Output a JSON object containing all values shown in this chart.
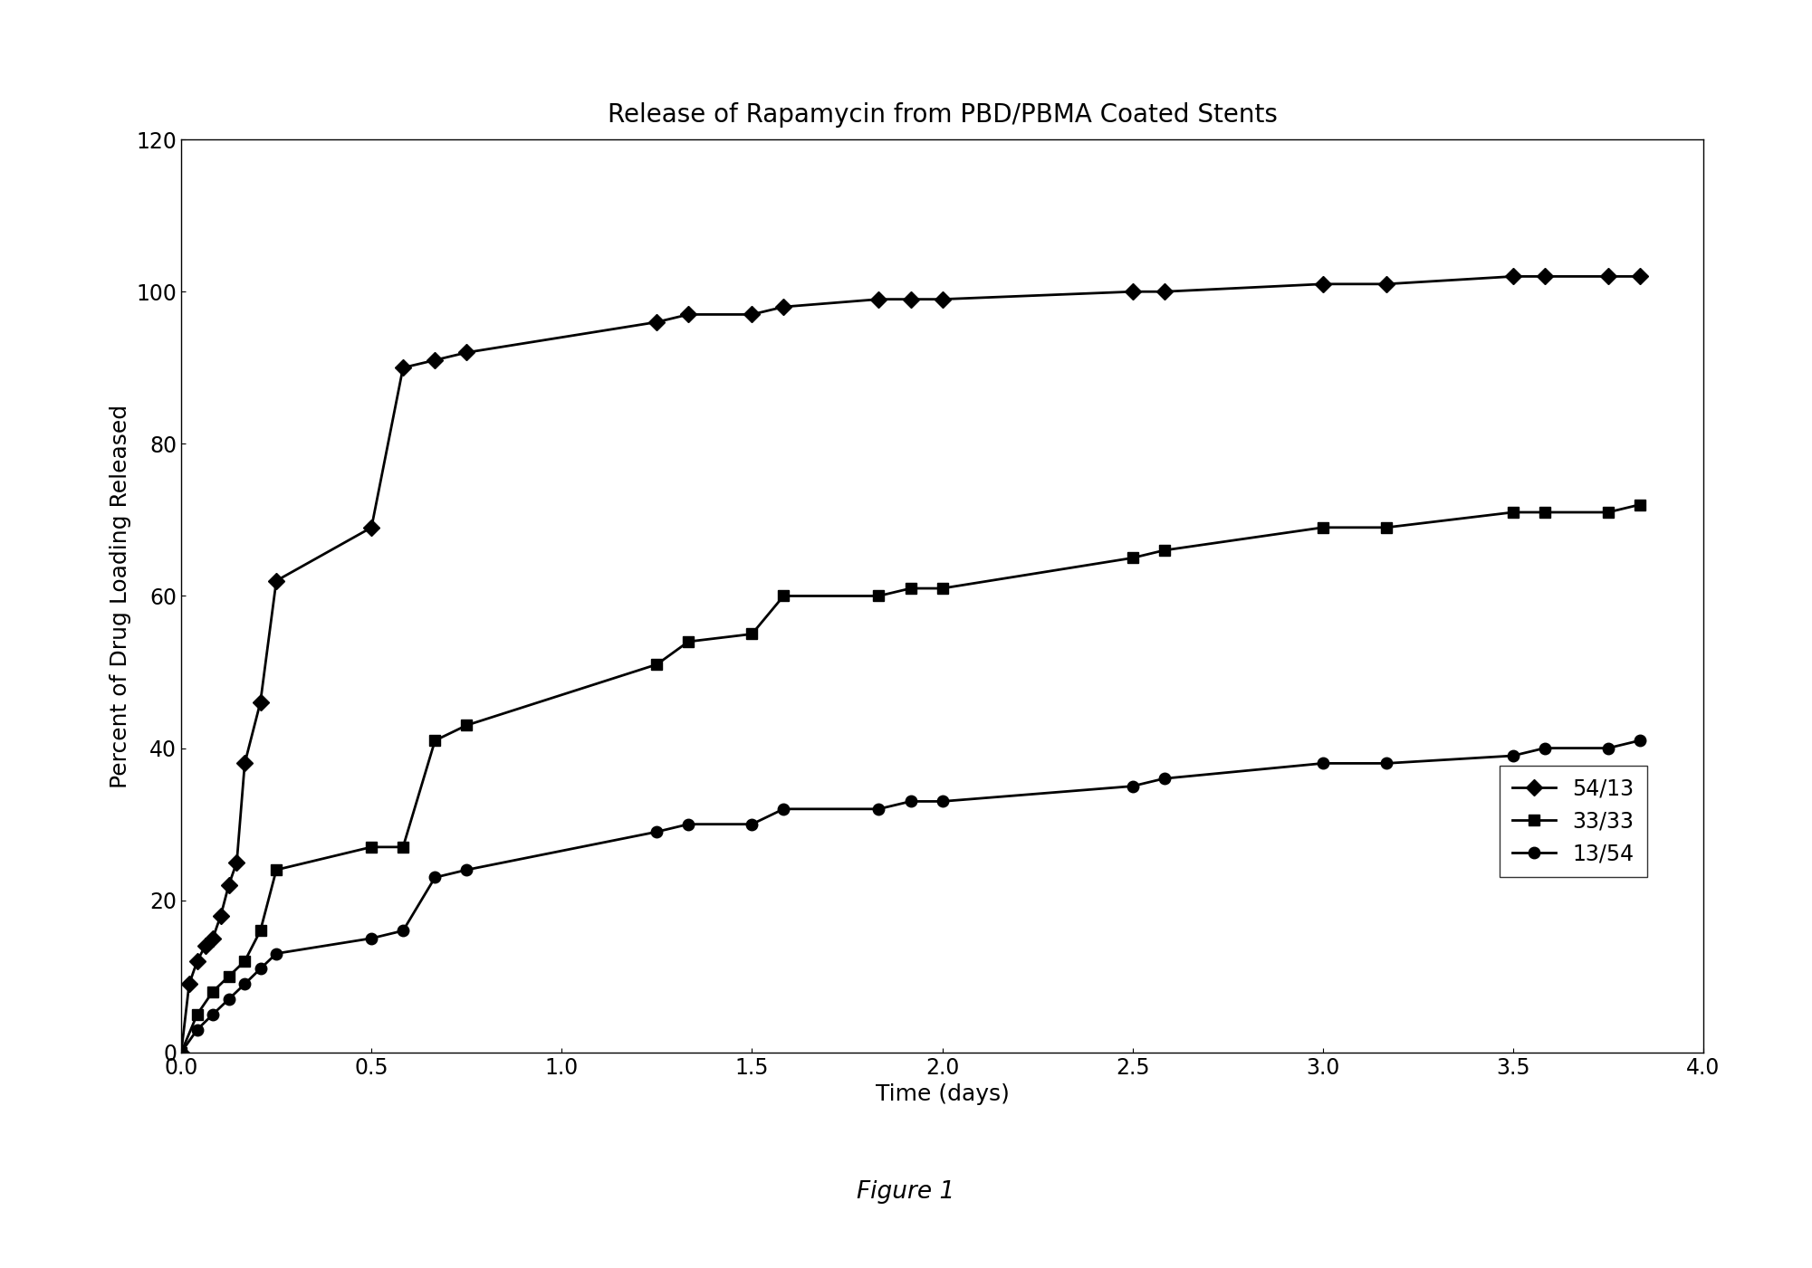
{
  "title": "Release of Rapamycin from PBD/PBMA Coated Stents",
  "xlabel": "Time (days)",
  "ylabel": "Percent of Drug Loading Released",
  "figure_caption": "Figure 1",
  "xlim": [
    0,
    4
  ],
  "ylim": [
    0,
    120
  ],
  "xticks": [
    0,
    0.5,
    1,
    1.5,
    2,
    2.5,
    3,
    3.5,
    4
  ],
  "yticks": [
    0,
    20,
    40,
    60,
    80,
    100,
    120
  ],
  "background_color": "#ffffff",
  "series": [
    {
      "label": "54/13",
      "marker": "D",
      "markersize": 9,
      "color": "#000000",
      "linewidth": 2.0,
      "x": [
        0,
        0.021,
        0.042,
        0.063,
        0.083,
        0.104,
        0.125,
        0.146,
        0.167,
        0.208,
        0.25,
        0.5,
        0.583,
        0.667,
        0.75,
        1.25,
        1.333,
        1.5,
        1.583,
        1.833,
        1.917,
        2.0,
        2.5,
        2.583,
        3.0,
        3.167,
        3.5,
        3.583,
        3.75,
        3.833
      ],
      "y": [
        0,
        9,
        12,
        14,
        15,
        18,
        22,
        25,
        38,
        46,
        62,
        69,
        90,
        91,
        92,
        96,
        97,
        97,
        98,
        99,
        99,
        99,
        100,
        100,
        101,
        101,
        102,
        102,
        102,
        102
      ]
    },
    {
      "label": "33/33",
      "marker": "s",
      "markersize": 9,
      "color": "#000000",
      "linewidth": 2.0,
      "x": [
        0,
        0.042,
        0.083,
        0.125,
        0.167,
        0.208,
        0.25,
        0.5,
        0.583,
        0.667,
        0.75,
        1.25,
        1.333,
        1.5,
        1.583,
        1.833,
        1.917,
        2.0,
        2.5,
        2.583,
        3.0,
        3.167,
        3.5,
        3.583,
        3.75,
        3.833
      ],
      "y": [
        0,
        5,
        8,
        10,
        12,
        16,
        24,
        27,
        27,
        41,
        43,
        51,
        54,
        55,
        60,
        60,
        61,
        61,
        65,
        66,
        69,
        69,
        71,
        71,
        71,
        72
      ]
    },
    {
      "label": "13/54",
      "marker": "o",
      "markersize": 9,
      "color": "#000000",
      "linewidth": 2.0,
      "x": [
        0,
        0.042,
        0.083,
        0.125,
        0.167,
        0.208,
        0.25,
        0.5,
        0.583,
        0.667,
        0.75,
        1.25,
        1.333,
        1.5,
        1.583,
        1.833,
        1.917,
        2.0,
        2.5,
        2.583,
        3.0,
        3.167,
        3.5,
        3.583,
        3.75,
        3.833
      ],
      "y": [
        0,
        3,
        5,
        7,
        9,
        11,
        13,
        15,
        16,
        23,
        24,
        29,
        30,
        30,
        32,
        32,
        33,
        33,
        35,
        36,
        38,
        38,
        39,
        40,
        40,
        41
      ]
    }
  ],
  "title_fontsize": 20,
  "label_fontsize": 18,
  "tick_fontsize": 17,
  "caption_fontsize": 19,
  "legend_fontsize": 17
}
